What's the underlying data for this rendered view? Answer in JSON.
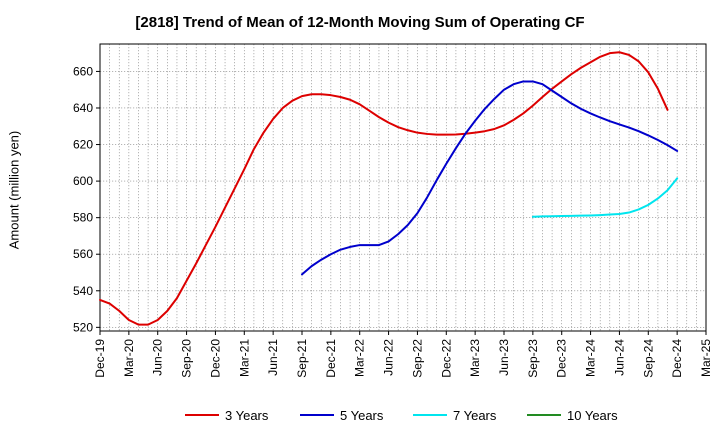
{
  "chart_data": {
    "type": "line",
    "title": "[2818]  Trend of Mean of 12-Month Moving Sum of Operating CF",
    "xlabel": "",
    "ylabel": "Amount (million yen)",
    "ylim": [
      518,
      675
    ],
    "yticks": [
      520,
      540,
      560,
      580,
      600,
      620,
      640,
      660
    ],
    "x_tick_labels": [
      "Dec-19",
      "Mar-20",
      "Jun-20",
      "Sep-20",
      "Dec-20",
      "Mar-21",
      "Jun-21",
      "Sep-21",
      "Dec-21",
      "Mar-22",
      "Jun-22",
      "Sep-22",
      "Dec-22",
      "Mar-23",
      "Jun-23",
      "Sep-23",
      "Dec-23",
      "Mar-24",
      "Jun-24",
      "Sep-24",
      "Dec-24",
      "Mar-25"
    ],
    "x_index_range": [
      0,
      63
    ],
    "x_index_note": "index 0 = Dec-19, one step per month",
    "grid": true,
    "legend_position": "bottom",
    "series": [
      {
        "name": "3 Years",
        "color": "#dd0000",
        "start_index": 0,
        "values": [
          535,
          533,
          529,
          524,
          521.5,
          521.5,
          524,
          529,
          536,
          545.5,
          555,
          565,
          575,
          585.5,
          596,
          606.5,
          617.5,
          626.5,
          634,
          640,
          644,
          646.5,
          647.5,
          647.5,
          647,
          646,
          644.5,
          642,
          638.5,
          635,
          632,
          629.5,
          627.8,
          626.5,
          625.8,
          625.4,
          625.4,
          625.5,
          625.9,
          626.5,
          627.3,
          628.5,
          630.5,
          633.5,
          637,
          641.3,
          646,
          650.5,
          654.5,
          658.5,
          662,
          665,
          668,
          670,
          670.5,
          669,
          665.5,
          659.5,
          650.5,
          639
        ]
      },
      {
        "name": "5 Years",
        "color": "#0000cc",
        "start_index": 21,
        "values": [
          549,
          553.5,
          557,
          560,
          562.5,
          564,
          565,
          565,
          565,
          567,
          571,
          576,
          582.5,
          591,
          600.5,
          609.5,
          618,
          626,
          633,
          639.5,
          645,
          650,
          653,
          654.5,
          654.5,
          653,
          649.5,
          646,
          642.5,
          639.5,
          637,
          634.8,
          632.8,
          631,
          629.3,
          627.3,
          625,
          622.5,
          619.7,
          616.5
        ]
      },
      {
        "name": "7 Years",
        "color": "#00e5ee",
        "start_index": 45,
        "values": [
          580.5,
          580.7,
          580.8,
          580.9,
          581,
          581.1,
          581.2,
          581.4,
          581.7,
          582,
          582.8,
          584.5,
          587,
          590.5,
          595,
          601.5
        ]
      },
      {
        "name": "10 Years",
        "color": "#228b22",
        "start_index": 0,
        "values": []
      }
    ]
  }
}
